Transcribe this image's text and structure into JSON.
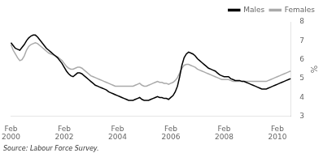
{
  "chart_data": {
    "type": "line",
    "categories": [
      "Feb\n2000",
      null,
      null,
      null,
      null,
      null,
      null,
      null,
      null,
      null,
      null,
      null,
      null,
      null,
      null,
      null,
      null,
      null,
      null,
      null,
      null,
      null,
      null,
      null,
      "Feb\n2002",
      null,
      null,
      null,
      null,
      null,
      null,
      null,
      null,
      null,
      null,
      null,
      null,
      null,
      null,
      null,
      null,
      null,
      null,
      null,
      null,
      null,
      null,
      null,
      "Feb\n2004",
      null,
      null,
      null,
      null,
      null,
      null,
      null,
      null,
      null,
      null,
      null,
      null,
      null,
      null,
      null,
      null,
      null,
      null,
      null,
      null,
      null,
      null,
      null,
      "Feb\n2006",
      null,
      null,
      null,
      null,
      null,
      null,
      null,
      null,
      null,
      null,
      null,
      null,
      null,
      null,
      null,
      null,
      null,
      null,
      null,
      null,
      null,
      null,
      null,
      "Feb\n2008",
      null,
      null,
      null,
      null,
      null,
      null,
      null,
      null,
      null,
      null,
      null,
      null,
      null,
      null,
      null,
      null,
      null,
      null,
      null,
      null,
      null,
      null,
      null,
      "Feb\n2010",
      null,
      null,
      null,
      null,
      null,
      null
    ],
    "series": [
      {
        "name": "Males",
        "color": "#000000",
        "values": [
          6.9,
          6.75,
          6.6,
          6.55,
          6.5,
          6.65,
          6.8,
          7.0,
          7.15,
          7.25,
          7.3,
          7.3,
          7.2,
          7.05,
          6.9,
          6.75,
          6.6,
          6.5,
          6.4,
          6.3,
          6.2,
          6.1,
          5.95,
          5.8,
          5.6,
          5.4,
          5.25,
          5.15,
          5.1,
          5.2,
          5.3,
          5.3,
          5.25,
          5.15,
          5.05,
          4.95,
          4.85,
          4.75,
          4.65,
          4.6,
          4.55,
          4.5,
          4.45,
          4.4,
          4.3,
          4.25,
          4.2,
          4.15,
          4.1,
          4.05,
          4.0,
          3.95,
          3.9,
          3.85,
          3.85,
          3.85,
          3.9,
          3.95,
          4.0,
          3.9,
          3.85,
          3.85,
          3.85,
          3.9,
          3.95,
          4.0,
          4.05,
          4.0,
          4.0,
          3.95,
          3.95,
          3.9,
          4.0,
          4.1,
          4.3,
          4.6,
          5.1,
          5.7,
          6.1,
          6.3,
          6.4,
          6.35,
          6.3,
          6.2,
          6.05,
          5.95,
          5.85,
          5.75,
          5.65,
          5.55,
          5.5,
          5.45,
          5.4,
          5.3,
          5.2,
          5.15,
          5.1,
          5.1,
          5.1,
          5.0,
          4.95,
          4.9,
          4.9,
          4.9,
          4.85,
          4.85,
          4.8,
          4.75,
          4.7,
          4.65,
          4.6,
          4.55,
          4.5,
          4.45,
          4.45,
          4.45,
          4.5,
          4.55,
          4.6,
          4.65,
          4.7,
          4.75,
          4.8,
          4.85,
          4.9,
          4.95,
          5.0
        ]
      },
      {
        "name": "Females",
        "color": "#aaaaaa",
        "values": [
          6.8,
          6.5,
          6.3,
          6.1,
          5.95,
          6.0,
          6.2,
          6.5,
          6.7,
          6.8,
          6.85,
          6.9,
          6.85,
          6.75,
          6.65,
          6.55,
          6.45,
          6.35,
          6.3,
          6.25,
          6.2,
          6.15,
          6.05,
          5.95,
          5.8,
          5.65,
          5.55,
          5.5,
          5.5,
          5.55,
          5.6,
          5.6,
          5.55,
          5.45,
          5.35,
          5.25,
          5.15,
          5.1,
          5.05,
          5.0,
          4.95,
          4.9,
          4.85,
          4.8,
          4.75,
          4.7,
          4.65,
          4.6,
          4.6,
          4.6,
          4.6,
          4.6,
          4.6,
          4.6,
          4.6,
          4.6,
          4.65,
          4.7,
          4.75,
          4.65,
          4.6,
          4.6,
          4.65,
          4.7,
          4.75,
          4.8,
          4.85,
          4.8,
          4.8,
          4.75,
          4.75,
          4.7,
          4.75,
          4.8,
          4.9,
          5.05,
          5.3,
          5.55,
          5.7,
          5.75,
          5.75,
          5.7,
          5.65,
          5.6,
          5.5,
          5.45,
          5.4,
          5.35,
          5.3,
          5.25,
          5.2,
          5.15,
          5.1,
          5.05,
          5.0,
          4.95,
          4.95,
          4.95,
          4.95,
          4.9,
          4.85,
          4.85,
          4.85,
          4.85,
          4.85,
          4.85,
          4.85,
          4.85,
          4.85,
          4.85,
          4.85,
          4.85,
          4.85,
          4.85,
          4.85,
          4.85,
          4.9,
          4.95,
          5.0,
          5.05,
          5.1,
          5.15,
          5.2,
          5.25,
          5.3,
          5.35,
          5.4
        ]
      }
    ],
    "ylabel": "%",
    "ylim": [
      3,
      8
    ],
    "yticks": [
      3,
      4,
      5,
      6,
      7,
      8
    ],
    "grid": false,
    "legend": "upper right",
    "annotations": [
      "Source: Labour Force Survey."
    ]
  }
}
